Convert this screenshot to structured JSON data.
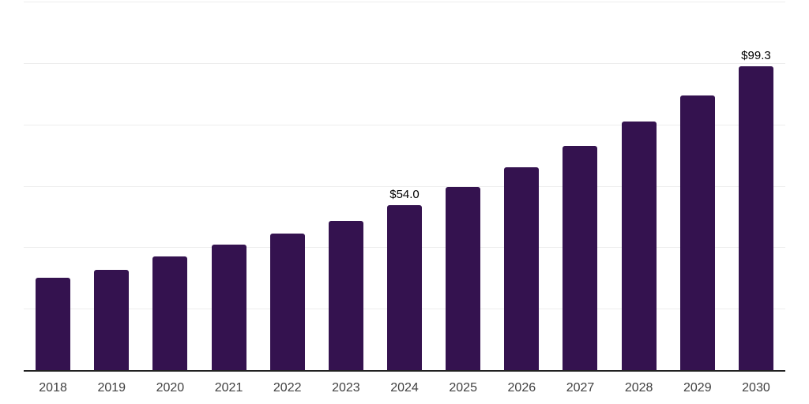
{
  "chart": {
    "background_color": "#ffffff",
    "bar_color": "#34124f",
    "axis_line_color": "#212121",
    "gridline_color": "#ededed",
    "tick_label_color": "#404040",
    "data_label_color": "#000000"
  },
  "chart_data": {
    "type": "bar",
    "categories": [
      "2018",
      "2019",
      "2020",
      "2021",
      "2022",
      "2023",
      "2024",
      "2025",
      "2026",
      "2027",
      "2028",
      "2029",
      "2030"
    ],
    "values": [
      30.2,
      32.8,
      37.2,
      41.0,
      44.8,
      48.9,
      54.0,
      59.8,
      66.2,
      73.2,
      81.1,
      89.7,
      99.3
    ],
    "data_labels": {
      "2024": "$54.0",
      "2030": "$99.3"
    },
    "title": "",
    "xlabel": "",
    "ylabel": "",
    "ylim": [
      0,
      120
    ],
    "gridline_step": 20,
    "grid": true,
    "legend": "none",
    "bar_color": "#34124f"
  }
}
